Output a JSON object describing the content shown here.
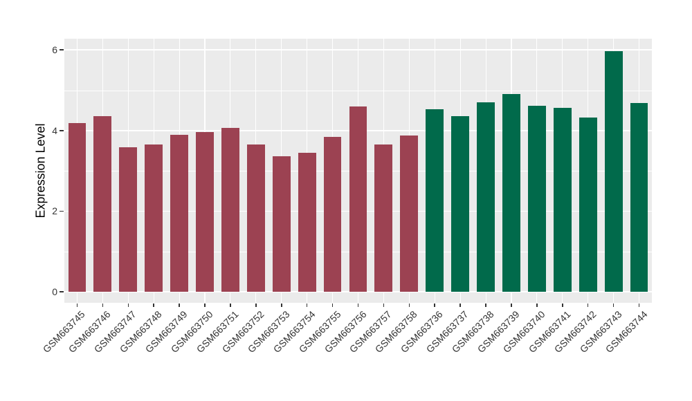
{
  "chart_data": {
    "type": "bar",
    "title": "",
    "xlabel": "",
    "ylabel": "Expression Level",
    "ylim": [
      0,
      6.28
    ],
    "yticks": [
      0,
      2,
      4,
      6
    ],
    "minor_gridlines": [
      1,
      3,
      5
    ],
    "legend": "none",
    "grid": "white major+minor horizontal lines and white vertical lines at category centers on gray panel",
    "panel_background": "#ebebeb",
    "gridline_color": "#ffffff",
    "groups": [
      {
        "name": "group-1-maroon",
        "color": "#9c4252"
      },
      {
        "name": "group-2-green",
        "color": "#016a4b"
      }
    ],
    "bars": [
      {
        "label": "GSM663745",
        "value": 4.18,
        "group": 0
      },
      {
        "label": "GSM663746",
        "value": 4.35,
        "group": 0
      },
      {
        "label": "GSM663747",
        "value": 3.58,
        "group": 0
      },
      {
        "label": "GSM663748",
        "value": 3.66,
        "group": 0
      },
      {
        "label": "GSM663749",
        "value": 3.9,
        "group": 0
      },
      {
        "label": "GSM663750",
        "value": 3.96,
        "group": 0
      },
      {
        "label": "GSM663751",
        "value": 4.07,
        "group": 0
      },
      {
        "label": "GSM663752",
        "value": 3.66,
        "group": 0
      },
      {
        "label": "GSM663753",
        "value": 3.37,
        "group": 0
      },
      {
        "label": "GSM663754",
        "value": 3.45,
        "group": 0
      },
      {
        "label": "GSM663755",
        "value": 3.85,
        "group": 0
      },
      {
        "label": "GSM663756",
        "value": 4.6,
        "group": 0
      },
      {
        "label": "GSM663757",
        "value": 3.65,
        "group": 0
      },
      {
        "label": "GSM663758",
        "value": 3.87,
        "group": 0
      },
      {
        "label": "GSM663736",
        "value": 4.53,
        "group": 1
      },
      {
        "label": "GSM663737",
        "value": 4.36,
        "group": 1
      },
      {
        "label": "GSM663738",
        "value": 4.7,
        "group": 1
      },
      {
        "label": "GSM663739",
        "value": 4.9,
        "group": 1
      },
      {
        "label": "GSM663740",
        "value": 4.61,
        "group": 1
      },
      {
        "label": "GSM663741",
        "value": 4.56,
        "group": 1
      },
      {
        "label": "GSM663742",
        "value": 4.32,
        "group": 1
      },
      {
        "label": "GSM663743",
        "value": 5.97,
        "group": 1
      },
      {
        "label": "GSM663744",
        "value": 4.68,
        "group": 1
      }
    ]
  }
}
